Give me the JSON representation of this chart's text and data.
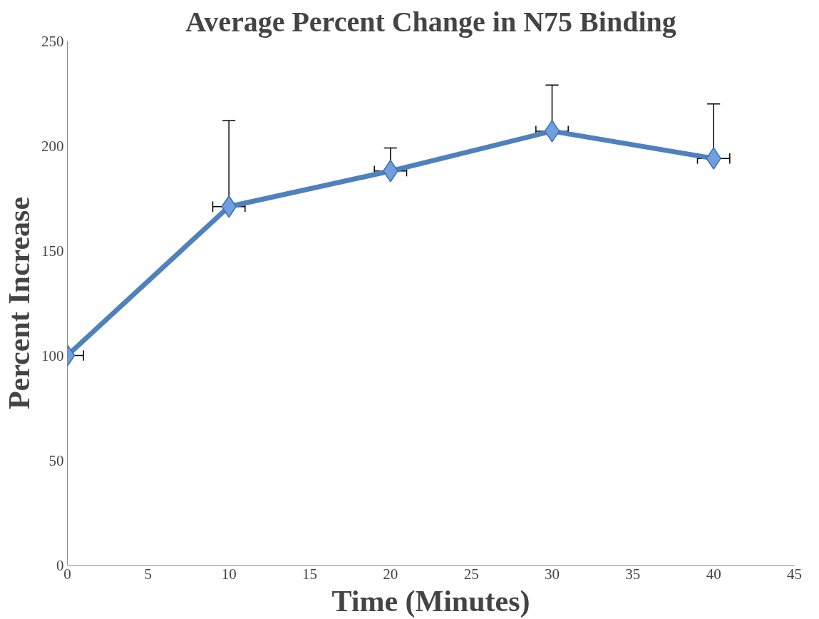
{
  "chart_data": {
    "type": "line",
    "title": "Average Percent Change in N75 Binding",
    "xlabel": "Time (Minutes)",
    "ylabel": "Percent Increase",
    "x": [
      0,
      10,
      20,
      30,
      40
    ],
    "series": [
      {
        "color": "#4f81bd",
        "values": [
          100,
          171,
          188,
          207,
          194
        ],
        "errors": [
          null,
          [
            171,
            212
          ],
          [
            188,
            199
          ],
          [
            207,
            229
          ],
          [
            194,
            220
          ]
        ],
        "xerrors": [
          1,
          1,
          1,
          1,
          1
        ]
      }
    ],
    "xlim": [
      0,
      45
    ],
    "xticks": [
      0,
      5,
      10,
      15,
      20,
      25,
      30,
      35,
      40,
      45
    ],
    "ylim": [
      0,
      250
    ],
    "yticks": [
      0,
      50,
      100,
      150,
      200,
      250
    ],
    "grid": false,
    "marker": "diamond",
    "line_style": "solid"
  }
}
